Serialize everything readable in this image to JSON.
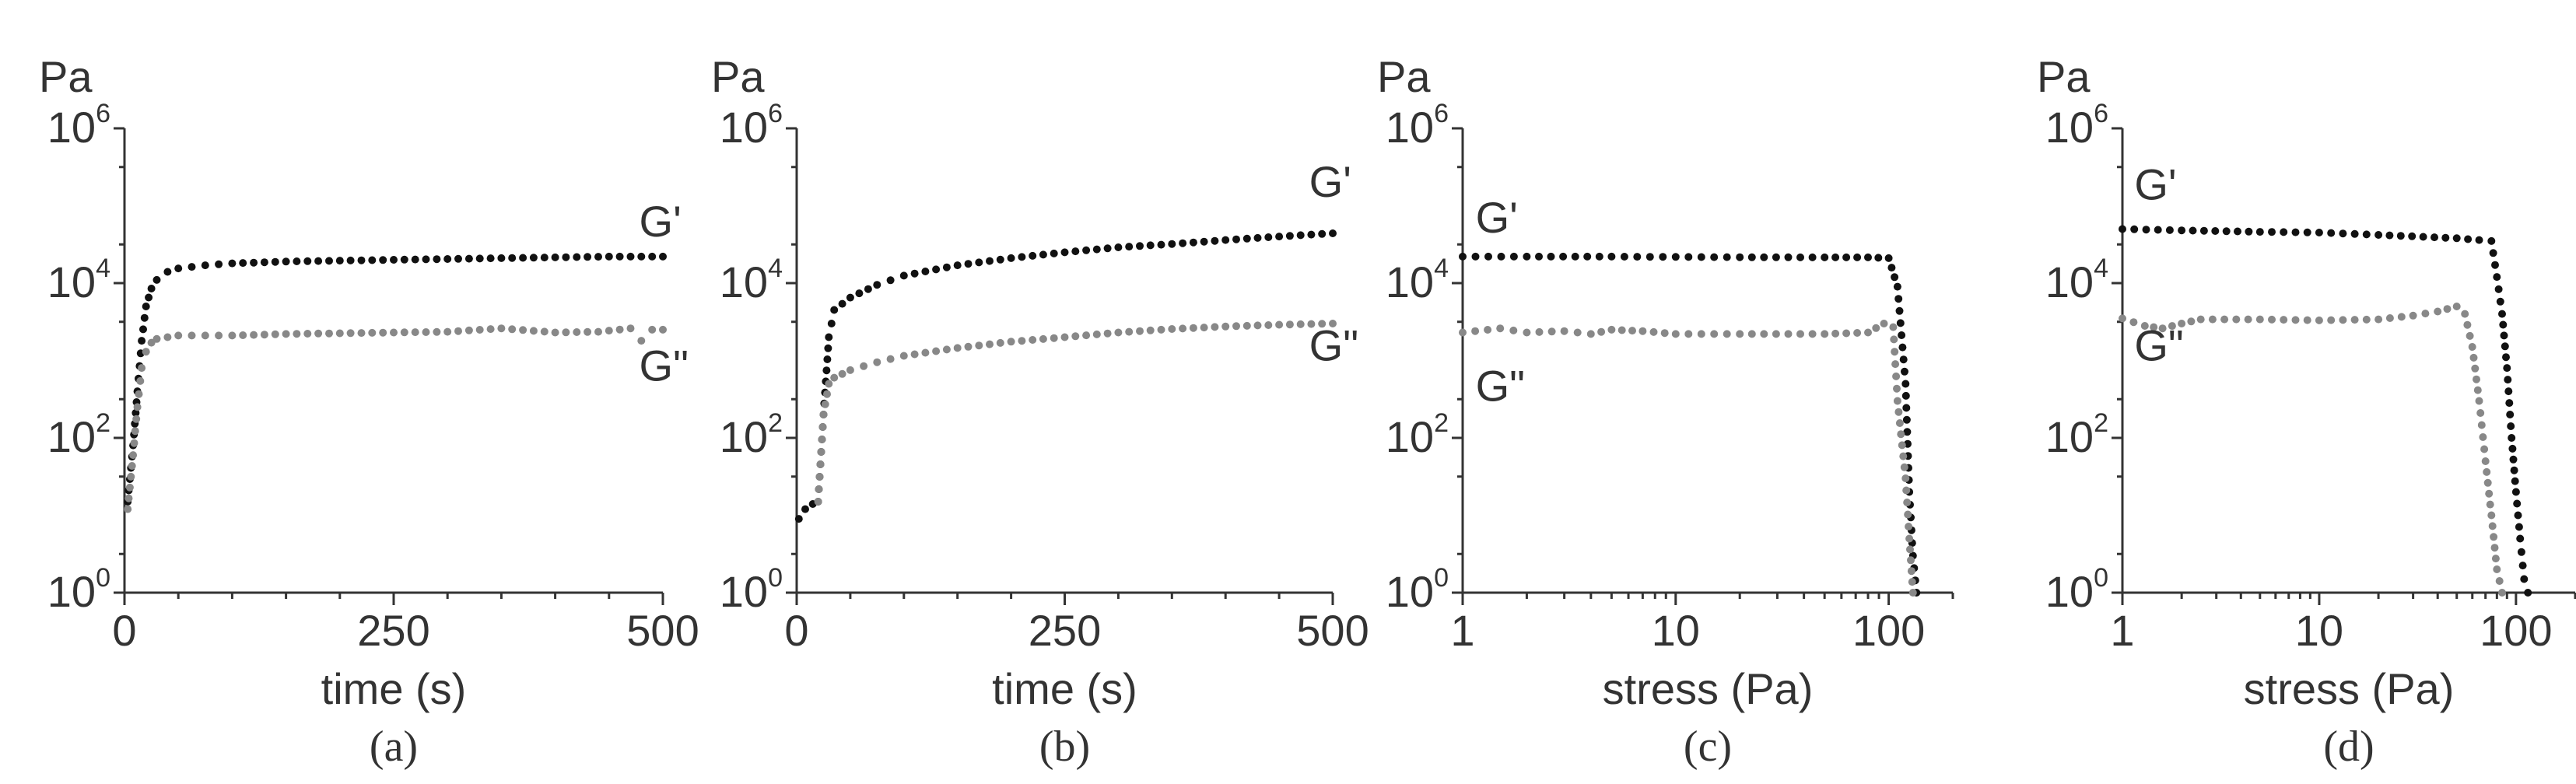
{
  "colors": {
    "g_prime": "#111111",
    "g_double_prime": "#888888",
    "axis": "#333333"
  },
  "chart_data": [
    {
      "type": "scatter",
      "panel_label": "(a)",
      "ylabel": "Pa",
      "xlabel": "time (s)",
      "xscale": "linear",
      "xlim": [
        0,
        500
      ],
      "yscale": "log",
      "ylim": [
        1,
        1000000
      ],
      "x_ticks": [
        {
          "v": 0,
          "t": "0"
        },
        {
          "v": 250,
          "t": "250"
        },
        {
          "v": 500,
          "t": "500"
        }
      ],
      "y_ticks": [
        {
          "v": 1,
          "m": "10",
          "e": "0"
        },
        {
          "v": 100,
          "m": "10",
          "e": "2"
        },
        {
          "v": 10000,
          "m": "10",
          "e": "4"
        },
        {
          "v": 1000000,
          "m": "10",
          "e": "6"
        }
      ],
      "series": [
        {
          "name": "G'",
          "label_at": [
            478,
            40000
          ],
          "points": [
            [
              3,
              15
            ],
            [
              8,
              80
            ],
            [
              12,
              400
            ],
            [
              16,
              1800
            ],
            [
              20,
              5000
            ],
            [
              25,
              8500
            ],
            [
              30,
              11000
            ],
            [
              40,
              14000
            ],
            [
              50,
              15500
            ],
            [
              75,
              17000
            ],
            [
              100,
              18000
            ],
            [
              150,
              19000
            ],
            [
              200,
              19500
            ],
            [
              250,
              20000
            ],
            [
              300,
              20500
            ],
            [
              350,
              21000
            ],
            [
              400,
              21500
            ],
            [
              450,
              22000
            ],
            [
              500,
              22000
            ]
          ]
        },
        {
          "name": "G\"",
          "label_at": [
            478,
            550
          ],
          "points": [
            [
              3,
              12
            ],
            [
              8,
              60
            ],
            [
              12,
              250
            ],
            [
              16,
              800
            ],
            [
              20,
              1300
            ],
            [
              25,
              1700
            ],
            [
              30,
              1900
            ],
            [
              40,
              2000
            ],
            [
              50,
              2100
            ],
            [
              75,
              2100
            ],
            [
              100,
              2100
            ],
            [
              150,
              2200
            ],
            [
              200,
              2250
            ],
            [
              250,
              2300
            ],
            [
              300,
              2350
            ],
            [
              350,
              2600
            ],
            [
              400,
              2300
            ],
            [
              440,
              2350
            ],
            [
              470,
              2600
            ],
            [
              480,
              1800
            ],
            [
              490,
              2500
            ],
            [
              500,
              2500
            ]
          ]
        }
      ]
    },
    {
      "type": "scatter",
      "panel_label": "(b)",
      "ylabel": "Pa",
      "xlabel": "time (s)",
      "xscale": "linear",
      "xlim": [
        0,
        500
      ],
      "yscale": "log",
      "ylim": [
        1,
        1000000
      ],
      "x_ticks": [
        {
          "v": 0,
          "t": "0"
        },
        {
          "v": 250,
          "t": "250"
        },
        {
          "v": 500,
          "t": "500"
        }
      ],
      "y_ticks": [
        {
          "v": 1,
          "m": "10",
          "e": "0"
        },
        {
          "v": 100,
          "m": "10",
          "e": "2"
        },
        {
          "v": 10000,
          "m": "10",
          "e": "4"
        },
        {
          "v": 1000000,
          "m": "10",
          "e": "6"
        }
      ],
      "series": [
        {
          "name": "G'",
          "label_at": [
            478,
            130000
          ],
          "points": [
            [
              2,
              9
            ],
            [
              8,
              12
            ],
            [
              15,
              14
            ],
            [
              20,
              15
            ],
            [
              25,
              200
            ],
            [
              30,
              2000
            ],
            [
              35,
              4500
            ],
            [
              50,
              6500
            ],
            [
              75,
              9500
            ],
            [
              100,
              12500
            ],
            [
              150,
              17000
            ],
            [
              200,
              21000
            ],
            [
              250,
              25000
            ],
            [
              300,
              29000
            ],
            [
              350,
              32000
            ],
            [
              400,
              36000
            ],
            [
              450,
              40000
            ],
            [
              500,
              44000
            ]
          ]
        },
        {
          "name": "G\"",
          "label_at": [
            478,
            1000
          ],
          "points": [
            [
              20,
              15
            ],
            [
              25,
              200
            ],
            [
              30,
              500
            ],
            [
              35,
              600
            ],
            [
              50,
              750
            ],
            [
              75,
              950
            ],
            [
              100,
              1150
            ],
            [
              150,
              1450
            ],
            [
              200,
              1750
            ],
            [
              250,
              2000
            ],
            [
              300,
              2300
            ],
            [
              350,
              2550
            ],
            [
              400,
              2750
            ],
            [
              450,
              2900
            ],
            [
              500,
              3000
            ]
          ]
        }
      ]
    },
    {
      "type": "scatter",
      "panel_label": "(c)",
      "ylabel": "Pa",
      "xlabel": "stress (Pa)",
      "xscale": "log",
      "xlim": [
        1,
        200
      ],
      "yscale": "log",
      "ylim": [
        1,
        1000000
      ],
      "x_ticks": [
        {
          "v": 1,
          "t": "1"
        },
        {
          "v": 10,
          "t": "10"
        },
        {
          "v": 100,
          "t": "100"
        }
      ],
      "y_ticks": [
        {
          "v": 1,
          "m": "10",
          "e": "0"
        },
        {
          "v": 100,
          "m": "10",
          "e": "2"
        },
        {
          "v": 10000,
          "m": "10",
          "e": "4"
        },
        {
          "v": 1000000,
          "m": "10",
          "e": "6"
        }
      ],
      "series": [
        {
          "name": "G'",
          "label_at": [
            1.15,
            45000
          ],
          "points": [
            [
              1,
              22000
            ],
            [
              2,
              22000
            ],
            [
              5,
              22000
            ],
            [
              10,
              21800
            ],
            [
              20,
              21600
            ],
            [
              50,
              21500
            ],
            [
              80,
              21500
            ],
            [
              100,
              21000
            ],
            [
              110,
              9000
            ],
            [
              120,
              500
            ],
            [
              125,
              20
            ],
            [
              130,
              3
            ],
            [
              135,
              1
            ]
          ]
        },
        {
          "name": "G\"",
          "label_at": [
            1.15,
            300
          ],
          "points": [
            [
              1,
              2300
            ],
            [
              1.5,
              2600
            ],
            [
              2,
              2300
            ],
            [
              3,
              2400
            ],
            [
              4,
              2200
            ],
            [
              5,
              2500
            ],
            [
              7,
              2400
            ],
            [
              10,
              2200
            ],
            [
              20,
              2200
            ],
            [
              50,
              2200
            ],
            [
              80,
              2300
            ],
            [
              95,
              3000
            ],
            [
              105,
              2700
            ],
            [
              110,
              300
            ],
            [
              120,
              30
            ],
            [
              125,
              5
            ],
            [
              130,
              1
            ]
          ]
        }
      ]
    },
    {
      "type": "scatter",
      "panel_label": "(d)",
      "ylabel": "Pa",
      "xlabel": "stress (Pa)",
      "xscale": "log",
      "xlim": [
        1,
        200
      ],
      "yscale": "log",
      "ylim": [
        1,
        1000000
      ],
      "x_ticks": [
        {
          "v": 1,
          "t": "1"
        },
        {
          "v": 10,
          "t": "10"
        },
        {
          "v": 100,
          "t": "100"
        }
      ],
      "y_ticks": [
        {
          "v": 1,
          "m": "10",
          "e": "0"
        },
        {
          "v": 100,
          "m": "10",
          "e": "2"
        },
        {
          "v": 10000,
          "m": "10",
          "e": "4"
        },
        {
          "v": 1000000,
          "m": "10",
          "e": "6"
        }
      ],
      "series": [
        {
          "name": "G'",
          "label_at": [
            1.15,
            120000
          ],
          "points": [
            [
              1,
              50000
            ],
            [
              2,
              48000
            ],
            [
              5,
              46000
            ],
            [
              10,
              45000
            ],
            [
              20,
              42000
            ],
            [
              50,
              38000
            ],
            [
              65,
              36000
            ],
            [
              75,
              35000
            ],
            [
              80,
              12000
            ],
            [
              85,
              4000
            ],
            [
              90,
              800
            ],
            [
              95,
              100
            ],
            [
              100,
              20
            ],
            [
              105,
              5
            ],
            [
              110,
              1.5
            ],
            [
              115,
              1
            ]
          ]
        },
        {
          "name": "G\"",
          "label_at": [
            1.15,
            1000
          ],
          "points": [
            [
              1,
              3500
            ],
            [
              1.3,
              2800
            ],
            [
              1.6,
              2600
            ],
            [
              2,
              3000
            ],
            [
              2.5,
              3400
            ],
            [
              5,
              3400
            ],
            [
              10,
              3300
            ],
            [
              20,
              3400
            ],
            [
              30,
              3800
            ],
            [
              40,
              4300
            ],
            [
              50,
              5000
            ],
            [
              55,
              4000
            ],
            [
              60,
              1500
            ],
            [
              65,
              300
            ],
            [
              70,
              50
            ],
            [
              75,
              10
            ],
            [
              80,
              2
            ],
            [
              85,
              1
            ]
          ]
        }
      ]
    }
  ]
}
